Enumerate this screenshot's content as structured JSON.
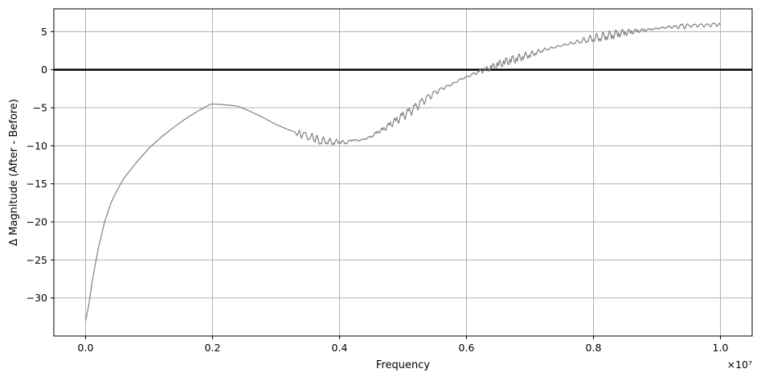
{
  "chart_data": {
    "type": "line",
    "title": "",
    "xlabel": "Frequency",
    "ylabel": "Δ Magnitude (After - Before)",
    "x_offset_label": "×10⁷",
    "x_scale": 10000000,
    "xlim": [
      -0.05,
      1.05
    ],
    "ylim": [
      -35,
      8
    ],
    "xticks": [
      0.0,
      0.2,
      0.4,
      0.6,
      0.8,
      1.0
    ],
    "xtick_labels": [
      "0.0",
      "0.2",
      "0.4",
      "0.6",
      "0.8",
      "1.0"
    ],
    "yticks": [
      5,
      0,
      -5,
      -10,
      -15,
      -20,
      -25,
      -30
    ],
    "ytick_labels": [
      "5",
      "0",
      "−5",
      "−10",
      "−15",
      "−20",
      "−25",
      "−30"
    ],
    "grid": true,
    "legend": "none",
    "line_color": "#808080",
    "zero_line_color": "#000000",
    "grid_color": "#b0b0b0",
    "reference_line": {
      "y": 0
    },
    "series": [
      {
        "x": [
          0.0,
          0.005,
          0.01,
          0.02,
          0.03,
          0.04,
          0.05,
          0.06,
          0.08,
          0.1,
          0.12,
          0.14,
          0.16,
          0.18,
          0.195,
          0.2,
          0.22,
          0.24,
          0.26,
          0.28,
          0.3,
          0.32,
          0.34,
          0.36,
          0.37,
          0.38,
          0.39,
          0.4,
          0.41,
          0.42,
          0.43,
          0.44,
          0.45,
          0.46,
          0.47,
          0.48,
          0.49,
          0.5,
          0.51,
          0.52,
          0.53,
          0.54,
          0.55,
          0.56,
          0.57,
          0.58,
          0.59,
          0.6,
          0.61,
          0.62,
          0.63,
          0.64,
          0.65,
          0.66,
          0.67,
          0.68,
          0.69,
          0.7,
          0.71,
          0.72,
          0.73,
          0.74,
          0.75,
          0.76,
          0.77,
          0.78,
          0.79,
          0.8,
          0.81,
          0.82,
          0.83,
          0.84,
          0.85,
          0.86,
          0.87,
          0.88,
          0.89,
          0.9,
          0.91,
          0.92,
          0.93,
          0.94,
          0.95,
          0.96,
          0.97,
          0.98,
          0.99,
          1.0
        ],
        "y": [
          -33.0,
          -31.0,
          -28.0,
          -23.5,
          -20.0,
          -17.5,
          -15.8,
          -14.3,
          -12.2,
          -10.3,
          -8.8,
          -7.5,
          -6.3,
          -5.3,
          -4.6,
          -4.5,
          -4.6,
          -4.8,
          -5.5,
          -6.3,
          -7.2,
          -7.9,
          -8.5,
          -9.0,
          -9.3,
          -9.3,
          -9.5,
          -9.4,
          -9.6,
          -9.2,
          -9.3,
          -9.1,
          -8.8,
          -8.2,
          -7.8,
          -7.2,
          -6.7,
          -6.1,
          -5.6,
          -5.0,
          -4.3,
          -3.7,
          -3.1,
          -2.6,
          -2.2,
          -1.8,
          -1.3,
          -1.0,
          -0.6,
          -0.3,
          0.0,
          0.3,
          0.7,
          1.0,
          1.3,
          1.5,
          1.8,
          2.0,
          2.3,
          2.6,
          2.8,
          3.0,
          3.2,
          3.4,
          3.6,
          3.8,
          4.0,
          4.2,
          4.3,
          4.5,
          4.6,
          4.8,
          4.9,
          5.0,
          5.1,
          5.2,
          5.3,
          5.4,
          5.5,
          5.6,
          5.6,
          5.7,
          5.7,
          5.8,
          5.8,
          5.8,
          5.9,
          5.9
        ]
      }
    ]
  }
}
